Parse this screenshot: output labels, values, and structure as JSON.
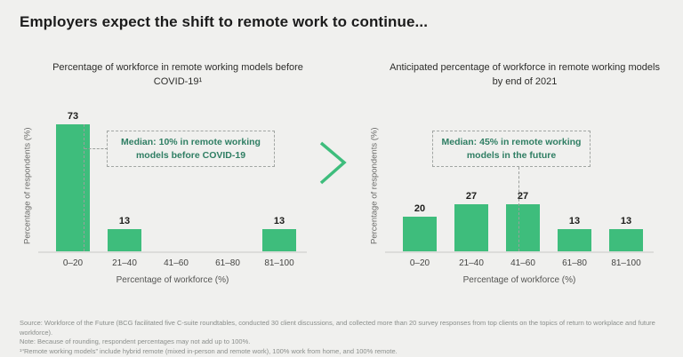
{
  "slide": {
    "title": "Employers expect the shift to remote work to continue...",
    "background": "#f0f0ee",
    "accent_green": "#3ebd7c",
    "median_text_green": "#2f7e63"
  },
  "icons": {
    "between_charts": "chevron-right-icon"
  },
  "chart_data": [
    {
      "type": "bar",
      "title": "Percentage of workforce in remote working models before COVID-19¹",
      "categories": [
        "0–20",
        "21–40",
        "41–60",
        "61–80",
        "81–100"
      ],
      "values": [
        73,
        13,
        0,
        0,
        13
      ],
      "xlabel": "Percentage of workforce (%)",
      "ylabel": "Percentage of respondents (%)",
      "ylim": [
        0,
        76
      ],
      "grid": false,
      "bar_color": "#3ebd7c",
      "annotation": "Median: 10% in remote working models before COVID-19",
      "median_percent": 10
    },
    {
      "type": "bar",
      "title": "Anticipated percentage of workforce in remote working models by end of 2021",
      "categories": [
        "0–20",
        "21–40",
        "41–60",
        "61–80",
        "81–100"
      ],
      "values": [
        20,
        27,
        27,
        13,
        13
      ],
      "xlabel": "Percentage of workforce (%)",
      "ylabel": "Percentage of respondents (%)",
      "ylim": [
        0,
        76
      ],
      "grid": false,
      "bar_color": "#3ebd7c",
      "annotation": "Median: 45% in remote working models in the future",
      "median_percent": 45
    }
  ],
  "footer": {
    "source": "Source: Workforce of the Future (BCG facilitated five C-suite roundtables, conducted 30 client discussions, and collected more than 20 survey responses from top clients on the topics of return to workplace and future workforce).",
    "note": "Note: Because of rounding, respondent percentages may not add up to 100%.",
    "footnote": "¹“Remote working models” include hybrid remote (mixed in-person and remote work), 100% work from home, and 100% remote."
  }
}
